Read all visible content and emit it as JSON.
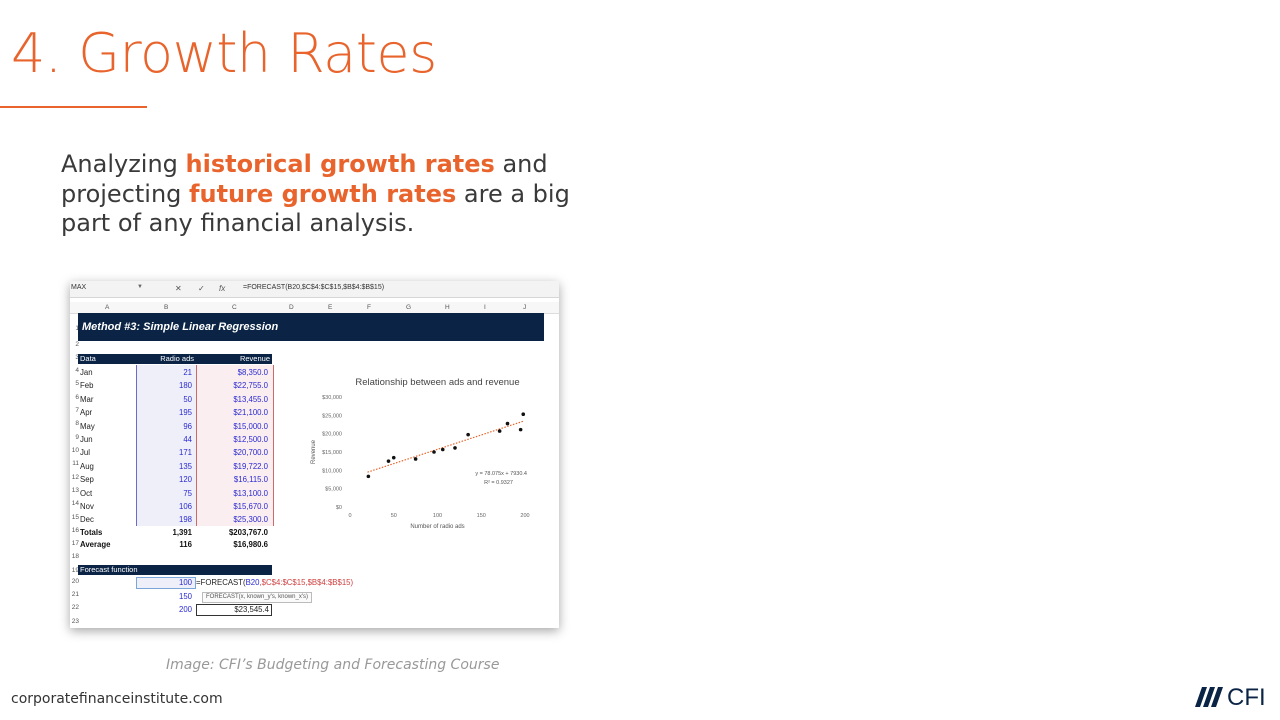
{
  "slide": {
    "title": "4. Growth Rates",
    "body": {
      "part1": "Analyzing ",
      "highlight1": "historical growth rates",
      "part2": " and projecting ",
      "highlight2": "future growth rates",
      "part3": " are a big part of any financial analysis."
    },
    "caption": "Image: CFI’s Budgeting and Forecasting Course",
    "footer_url": "corporatefinanceinstitute.com",
    "logo_text": "CFI",
    "accent_color": "#e8642c"
  },
  "spreadsheet": {
    "name_box": "MAX",
    "formula_bar": "=FORECAST(B20,$C$4:$C$15,$B$4:$B$15)",
    "columns": [
      "A",
      "B",
      "C",
      "D",
      "E",
      "F",
      "G",
      "H",
      "I",
      "J"
    ],
    "rows": [
      "1",
      "2",
      "3",
      "4",
      "5",
      "6",
      "7",
      "8",
      "9",
      "10",
      "11",
      "12",
      "13",
      "14",
      "15",
      "16",
      "17",
      "18",
      "19",
      "20",
      "21",
      "22",
      "23"
    ],
    "banner": "Method #3: Simple Linear Regression",
    "header": {
      "data": "Data",
      "ads": "Radio ads",
      "revenue": "Revenue"
    },
    "data_rows": [
      {
        "month": "Jan",
        "ads": "21",
        "revenue": "$8,350.0"
      },
      {
        "month": "Feb",
        "ads": "180",
        "revenue": "$22,755.0"
      },
      {
        "month": "Mar",
        "ads": "50",
        "revenue": "$13,455.0"
      },
      {
        "month": "Apr",
        "ads": "195",
        "revenue": "$21,100.0"
      },
      {
        "month": "May",
        "ads": "96",
        "revenue": "$15,000.0"
      },
      {
        "month": "Jun",
        "ads": "44",
        "revenue": "$12,500.0"
      },
      {
        "month": "Jul",
        "ads": "171",
        "revenue": "$20,700.0"
      },
      {
        "month": "Aug",
        "ads": "135",
        "revenue": "$19,722.0"
      },
      {
        "month": "Sep",
        "ads": "120",
        "revenue": "$16,115.0"
      },
      {
        "month": "Oct",
        "ads": "75",
        "revenue": "$13,100.0"
      },
      {
        "month": "Nov",
        "ads": "106",
        "revenue": "$15,670.0"
      },
      {
        "month": "Dec",
        "ads": "198",
        "revenue": "$25,300.0"
      }
    ],
    "totals": {
      "label": "Totals",
      "ads": "1,391",
      "revenue": "$203,767.0"
    },
    "average": {
      "label": "Average",
      "ads": "116",
      "revenue": "$16,980.6"
    },
    "forecast": {
      "header": "Forecast function",
      "inputs": [
        "100",
        "150",
        "200"
      ],
      "formula_prefix": "=FORECAST(",
      "formula_ref": "B20",
      "formula_rest": ",$C$4:$C$15,$B$4:$B$15)",
      "tooltip": "FORECAST(x, known_y's, known_x's)",
      "result": "$23,545.4"
    }
  },
  "chart_data": {
    "type": "scatter",
    "title": "Relationship between ads and revenue",
    "xlabel": "Number of radio ads",
    "ylabel": "Revenue",
    "xlim": [
      0,
      200
    ],
    "ylim": [
      0,
      30000
    ],
    "x_ticks": [
      "0",
      "50",
      "100",
      "150",
      "200"
    ],
    "y_ticks": [
      "$0",
      "$5,000",
      "$10,000",
      "$15,000",
      "$20,000",
      "$25,000",
      "$30,000"
    ],
    "x": [
      21,
      180,
      50,
      195,
      96,
      44,
      171,
      135,
      120,
      75,
      106,
      198
    ],
    "y": [
      8350,
      22755,
      13455,
      21100,
      15000,
      12500,
      20700,
      19722,
      16115,
      13100,
      15670,
      25300
    ],
    "trendline": {
      "slope": 78.075,
      "intercept": 7930.4,
      "color": "#e8642c",
      "style": "dotted"
    },
    "equation": "y = 78.075x + 7930.4",
    "r_squared": "R² = 0.9327",
    "grid": false
  }
}
